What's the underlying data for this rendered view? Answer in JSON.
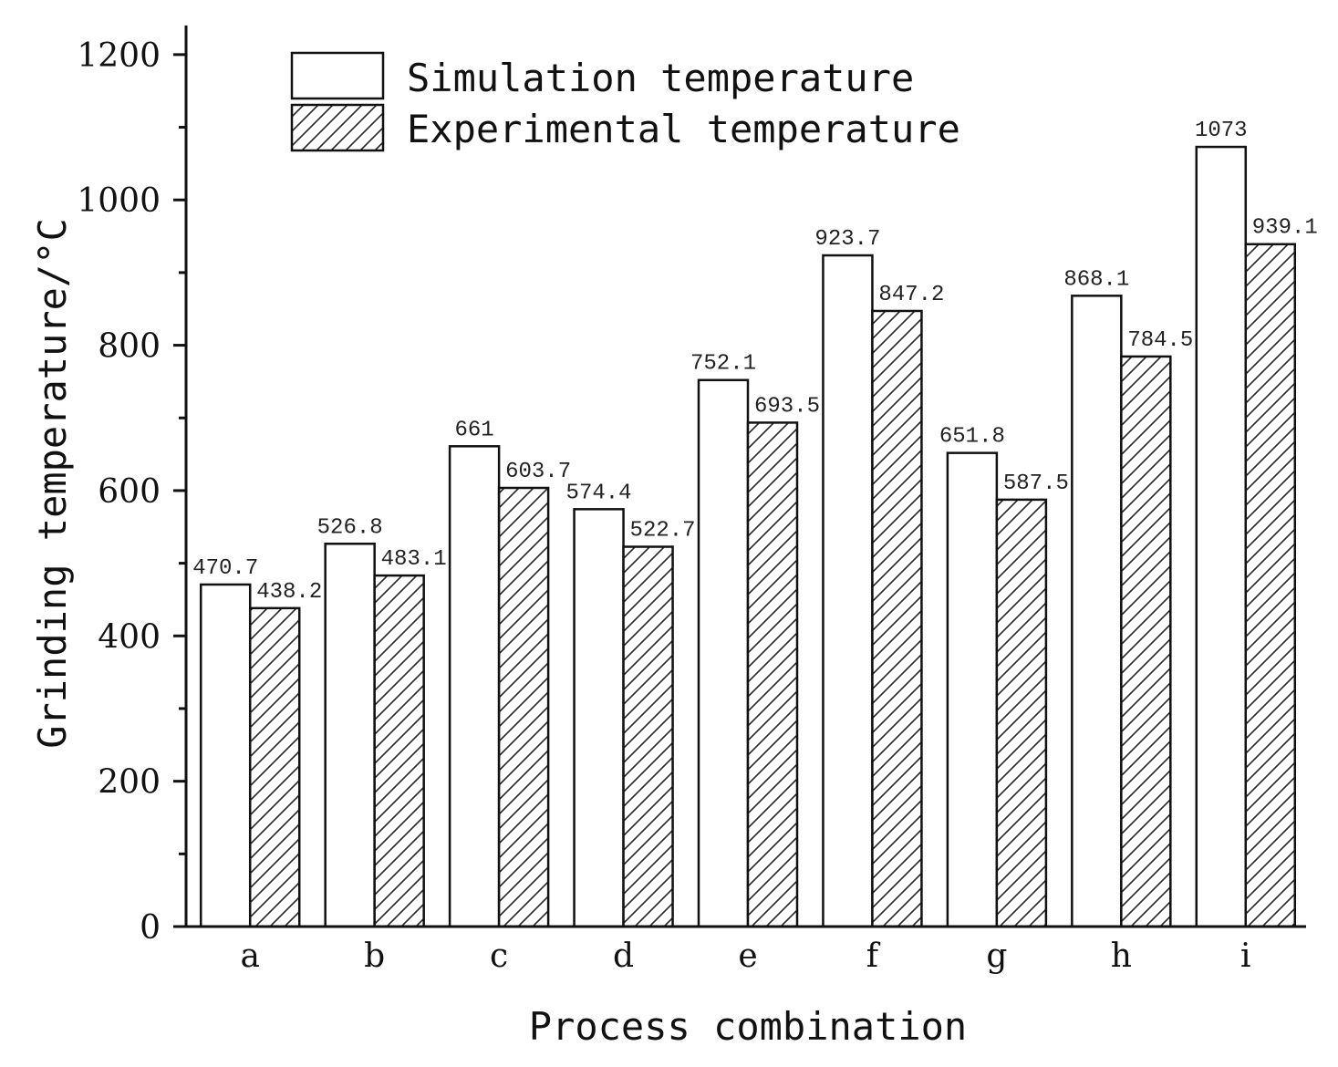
{
  "chart_data": {
    "type": "bar",
    "title": "",
    "xlabel": "Process combination",
    "ylabel": "Grinding temperature/°C",
    "categories": [
      "a",
      "b",
      "c",
      "d",
      "e",
      "f",
      "g",
      "h",
      "i"
    ],
    "series": [
      {
        "name": "Simulation temperature",
        "fill": "#ffffff",
        "pattern": "none",
        "values": [
          470.7,
          526.8,
          661,
          574.4,
          752.1,
          923.7,
          651.8,
          868.1,
          1073
        ],
        "value_labels": [
          "470.7",
          "526.8",
          "661",
          "574.4",
          "752.1",
          "923.7",
          "651.8",
          "868.1",
          "1073"
        ]
      },
      {
        "name": "Experimental temperature",
        "fill": "#ffffff",
        "pattern": "diagonal-hatch",
        "values": [
          438.2,
          483.1,
          603.7,
          522.7,
          693.5,
          847.2,
          587.5,
          784.5,
          939.1
        ],
        "value_labels": [
          "438.2",
          "483.1",
          "603.7",
          "522.7",
          "693.5",
          "847.2",
          "587.5",
          "784.5",
          "939.1"
        ]
      }
    ],
    "ylim": [
      0,
      1240
    ],
    "yticks": [
      0,
      200,
      400,
      600,
      800,
      1000,
      1200
    ],
    "ytick_labels": [
      "0",
      "200",
      "400",
      "600",
      "800",
      "1000",
      "1200"
    ],
    "yminor_step": 100,
    "grid": false,
    "legend_position": "top-left",
    "colors": {
      "axis": "#111111",
      "bar_stroke": "#111111",
      "background": "#ffffff"
    }
  }
}
